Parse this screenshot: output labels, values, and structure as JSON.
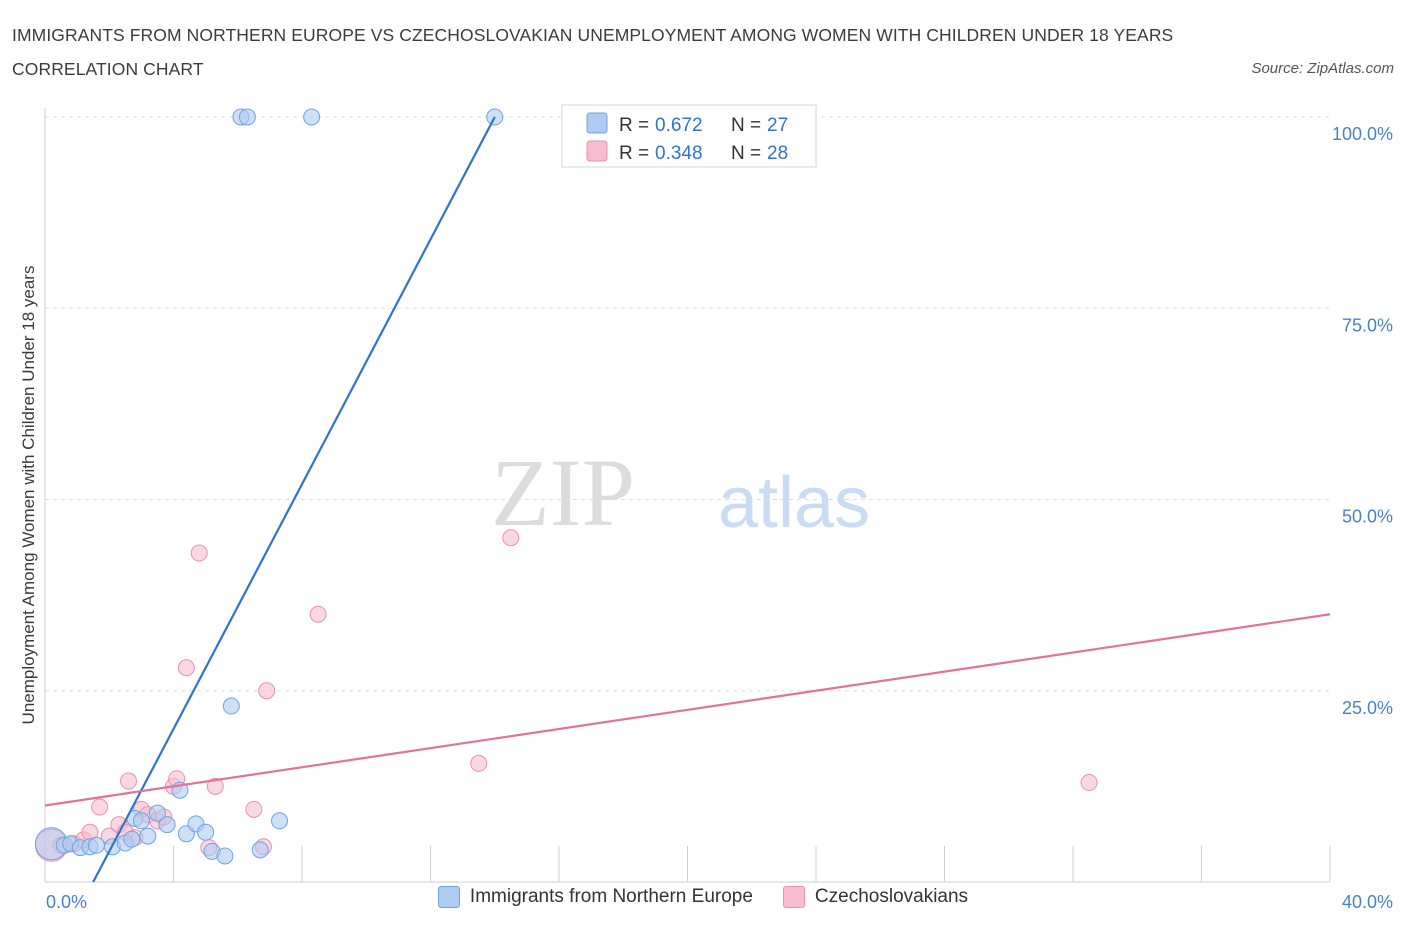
{
  "title": "IMMIGRANTS FROM NORTHERN EUROPE VS CZECHOSLOVAKIAN UNEMPLOYMENT AMONG WOMEN WITH CHILDREN UNDER 18 YEARS CORRELATION CHART",
  "source": "Source: ZipAtlas.com",
  "watermark": {
    "zip": "ZIP",
    "atlas": "atlas"
  },
  "colors": {
    "blue_fill": "#aecbf2",
    "blue_stroke": "#6fa3e0",
    "blue_line": "#2f73d1",
    "pink_fill": "#f7bcd0",
    "pink_stroke": "#e890ae",
    "pink_line": "#e5719a",
    "tick_text": "#4a7fd0",
    "grid": "#dddddd"
  },
  "legend": [
    {
      "r_label": "R =",
      "r_value": "0.672",
      "n_label": "N =",
      "n_value": "27"
    },
    {
      "r_label": "R =",
      "r_value": "0.348",
      "n_label": "N =",
      "n_value": "28"
    }
  ],
  "chart_data": {
    "type": "scatter",
    "title": "IMMIGRANTS FROM NORTHERN EUROPE VS CZECHOSLOVAKIAN UNEMPLOYMENT AMONG WOMEN WITH CHILDREN UNDER 18 YEARS CORRELATION CHART",
    "xlabel": "",
    "ylabel": "Unemployment Among Women with Children Under 18 years",
    "xlim": [
      0,
      40
    ],
    "ylim": [
      0,
      100
    ],
    "x_tick_labels": [
      "0.0%",
      "40.0%"
    ],
    "y_ticks": [
      25,
      50,
      75,
      100
    ],
    "y_tick_labels": [
      "25.0%",
      "50.0%",
      "75.0%",
      "100.0%"
    ],
    "grid": true,
    "legend_position": "top-center",
    "series": [
      {
        "name": "Immigrants from Northern Europe",
        "color": "blue",
        "r": 0.672,
        "n": 27,
        "trend": {
          "x": [
            1.5,
            14.0
          ],
          "y": [
            0,
            100
          ]
        },
        "points": [
          {
            "x": 0.2,
            "y": 5.0,
            "big": true
          },
          {
            "x": 0.6,
            "y": 4.8
          },
          {
            "x": 0.8,
            "y": 5.0
          },
          {
            "x": 1.1,
            "y": 4.5
          },
          {
            "x": 1.4,
            "y": 4.6
          },
          {
            "x": 1.6,
            "y": 4.8
          },
          {
            "x": 2.1,
            "y": 4.6
          },
          {
            "x": 2.5,
            "y": 5.1
          },
          {
            "x": 2.7,
            "y": 5.6
          },
          {
            "x": 2.8,
            "y": 8.3
          },
          {
            "x": 3.0,
            "y": 8.0
          },
          {
            "x": 3.2,
            "y": 6.0
          },
          {
            "x": 3.5,
            "y": 9.0
          },
          {
            "x": 3.8,
            "y": 7.5
          },
          {
            "x": 4.2,
            "y": 12.0
          },
          {
            "x": 4.4,
            "y": 6.3
          },
          {
            "x": 4.7,
            "y": 7.6
          },
          {
            "x": 5.0,
            "y": 6.5
          },
          {
            "x": 5.2,
            "y": 4.0
          },
          {
            "x": 5.6,
            "y": 3.4
          },
          {
            "x": 5.8,
            "y": 23.0
          },
          {
            "x": 6.1,
            "y": 100
          },
          {
            "x": 6.3,
            "y": 100
          },
          {
            "x": 6.7,
            "y": 4.2
          },
          {
            "x": 7.3,
            "y": 8.0
          },
          {
            "x": 8.3,
            "y": 100
          },
          {
            "x": 14.0,
            "y": 100
          }
        ]
      },
      {
        "name": "Czechoslovakians",
        "color": "pink",
        "r": 0.348,
        "n": 28,
        "trend": {
          "x": [
            0,
            40
          ],
          "y": [
            10.0,
            35.0
          ]
        },
        "points": [
          {
            "x": 0.2,
            "y": 4.8,
            "big": true
          },
          {
            "x": 0.5,
            "y": 4.8
          },
          {
            "x": 0.9,
            "y": 5.0
          },
          {
            "x": 1.2,
            "y": 5.5
          },
          {
            "x": 1.4,
            "y": 6.5
          },
          {
            "x": 1.7,
            "y": 9.8
          },
          {
            "x": 2.0,
            "y": 6.0
          },
          {
            "x": 2.3,
            "y": 7.5
          },
          {
            "x": 2.5,
            "y": 6.5
          },
          {
            "x": 2.6,
            "y": 13.2
          },
          {
            "x": 2.8,
            "y": 5.8
          },
          {
            "x": 3.0,
            "y": 9.5
          },
          {
            "x": 3.2,
            "y": 8.8
          },
          {
            "x": 3.5,
            "y": 8.0
          },
          {
            "x": 3.7,
            "y": 8.5
          },
          {
            "x": 4.0,
            "y": 12.5
          },
          {
            "x": 4.1,
            "y": 13.5
          },
          {
            "x": 4.4,
            "y": 28.0
          },
          {
            "x": 4.8,
            "y": 43.0
          },
          {
            "x": 5.1,
            "y": 4.5
          },
          {
            "x": 5.3,
            "y": 12.5
          },
          {
            "x": 6.5,
            "y": 9.5
          },
          {
            "x": 6.8,
            "y": 4.6
          },
          {
            "x": 6.9,
            "y": 25.0
          },
          {
            "x": 8.5,
            "y": 35.0
          },
          {
            "x": 13.5,
            "y": 15.5
          },
          {
            "x": 14.5,
            "y": 45.0
          },
          {
            "x": 32.5,
            "y": 13.0
          }
        ]
      }
    ]
  }
}
